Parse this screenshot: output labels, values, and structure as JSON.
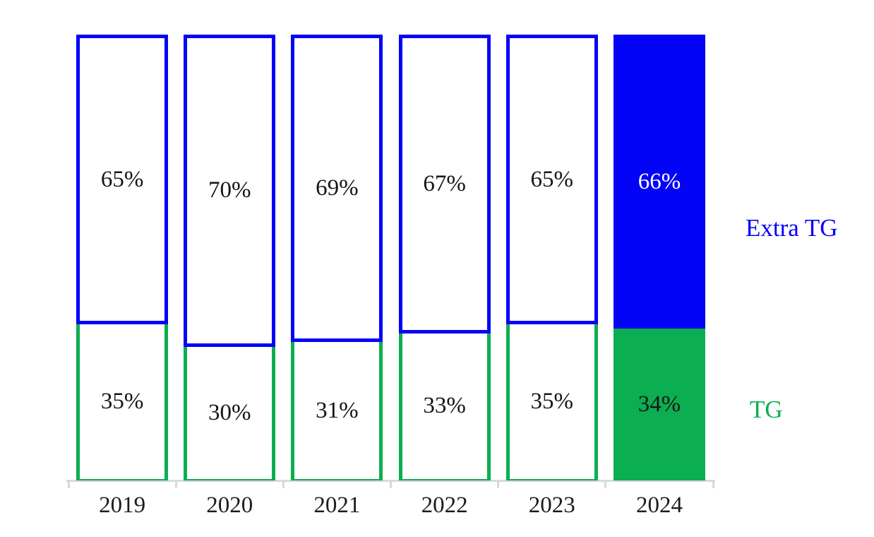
{
  "chart_data": {
    "type": "bar",
    "subtype": "100-percent-stacked-column",
    "title": "",
    "categories": [
      "2019",
      "2020",
      "2021",
      "2022",
      "2023",
      "2024"
    ],
    "series": [
      {
        "name": "TG",
        "color": "#0bae51",
        "values": [
          35,
          30,
          31,
          33,
          35,
          34
        ]
      },
      {
        "name": "Extra TG",
        "color": "#0303f8",
        "values": [
          65,
          70,
          69,
          67,
          65,
          66
        ]
      }
    ],
    "value_label_format": "{v}%",
    "value_labels": {
      "extra_tg": [
        "65%",
        "70%",
        "69%",
        "67%",
        "65%",
        "66%"
      ],
      "tg": [
        "35%",
        "30%",
        "31%",
        "33%",
        "35%",
        "34%"
      ]
    },
    "highlight_category": "2024",
    "highlight_style": "solid-fill",
    "other_bars_style": "outline-only",
    "legend_position": "right",
    "legend_entries": [
      "Extra TG",
      "TG"
    ],
    "ylim": [
      0,
      100
    ],
    "grid": false,
    "x_axis_visible": true,
    "y_axis_visible": false,
    "colors": {
      "extra_tg": "#0303f8",
      "tg": "#0bae51",
      "axis": "#d9d9d9",
      "label_dark": "#161616",
      "label_light": "#ffffff"
    }
  }
}
